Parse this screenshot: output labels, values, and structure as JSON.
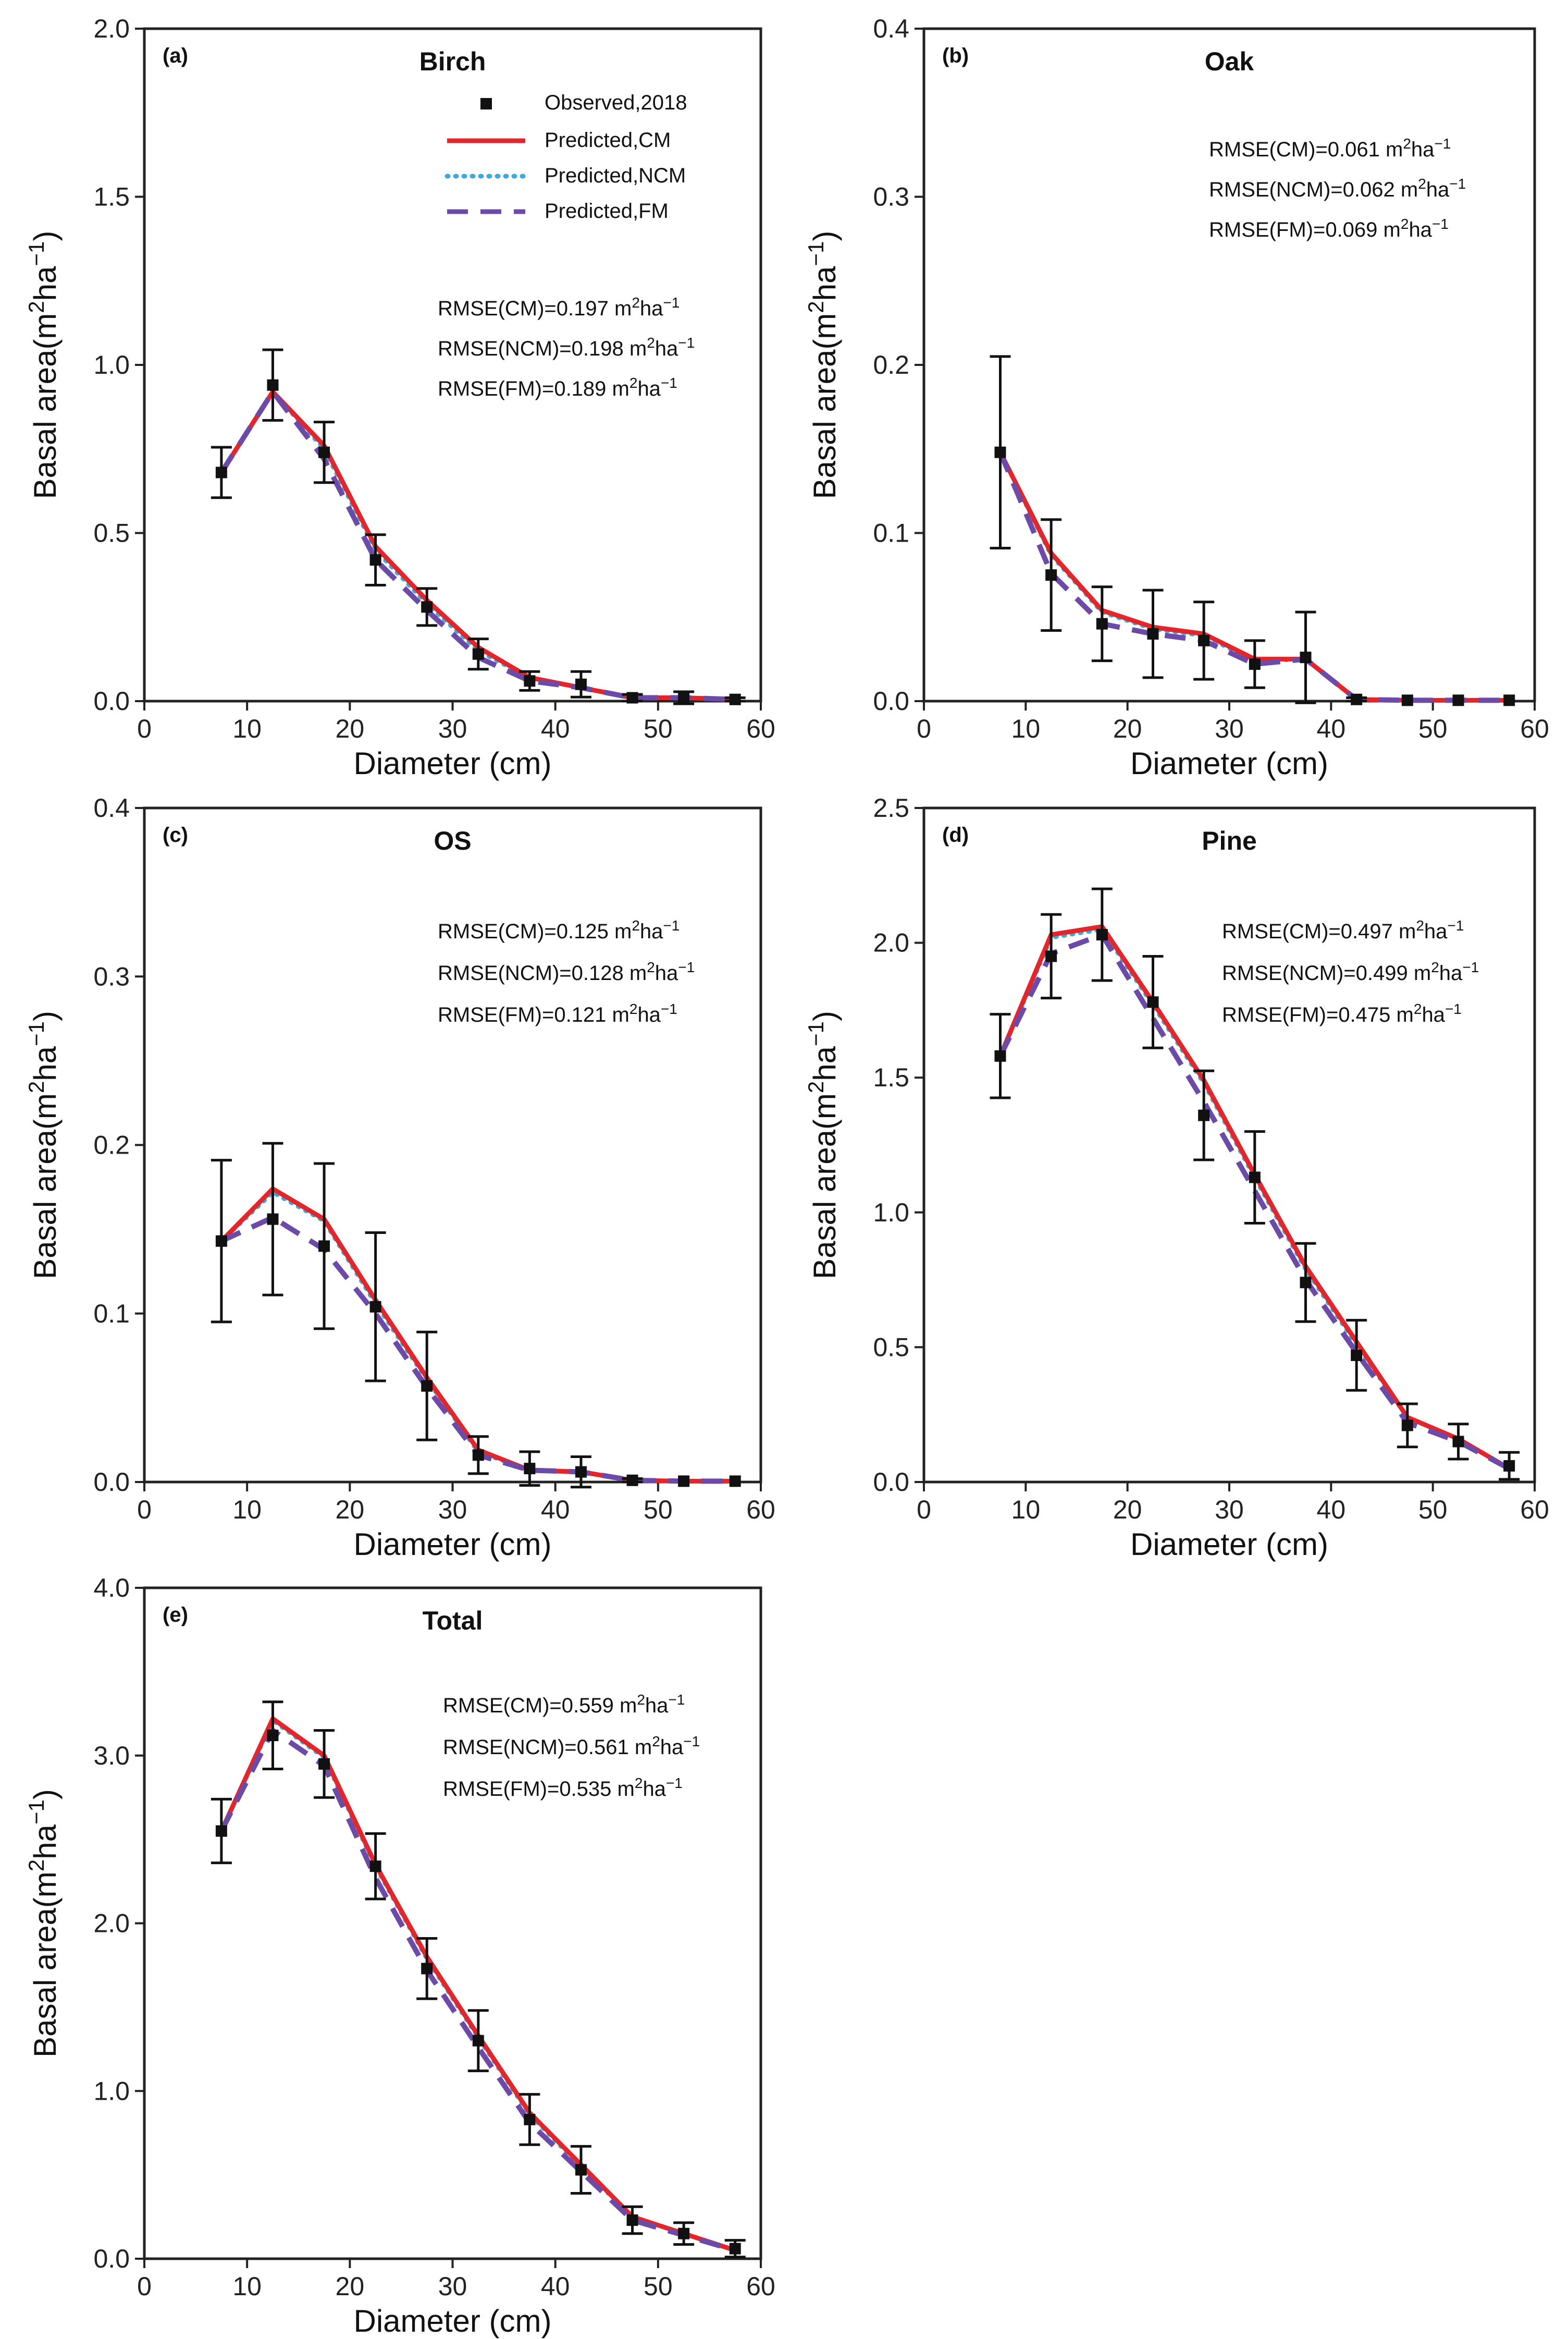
{
  "legend": {
    "observed": "Observed,2018",
    "cm": "Predicted,CM",
    "ncm": "Predicted,NCM",
    "fm": "Predicted,FM"
  },
  "colors": {
    "observed": "#111111",
    "cm": "#e3262b",
    "ncm": "#3fa9dc",
    "fm": "#6b4aa8"
  },
  "chart_data": [
    {
      "type": "line",
      "tag": "(a)",
      "title": "Birch",
      "xlabel": "Diameter (cm)",
      "ylabel": "Basal area(m²ha⁻¹)",
      "xlim": [
        0,
        60
      ],
      "ylim": [
        0,
        2.0
      ],
      "xticks": [
        0,
        10,
        20,
        30,
        40,
        50,
        60
      ],
      "yticks": [
        "0.0",
        "0.5",
        "1.0",
        "1.5",
        "2.0"
      ],
      "x": [
        7.5,
        12.5,
        17.5,
        22.5,
        27.5,
        32.5,
        37.5,
        42.5,
        47.5,
        52.5,
        57.5
      ],
      "observed": [
        0.68,
        0.94,
        0.74,
        0.42,
        0.28,
        0.14,
        0.06,
        0.05,
        0.01,
        0.01,
        0.005
      ],
      "error": [
        0.075,
        0.105,
        0.09,
        0.075,
        0.055,
        0.045,
        0.028,
        0.038,
        0.01,
        0.018,
        0.005
      ],
      "series": [
        {
          "name": "Predicted,CM",
          "values": [
            0.68,
            0.92,
            0.76,
            0.46,
            0.3,
            0.16,
            0.07,
            0.04,
            0.01,
            0.01,
            0.005
          ]
        },
        {
          "name": "Predicted,NCM",
          "values": [
            0.68,
            0.92,
            0.75,
            0.45,
            0.29,
            0.15,
            0.07,
            0.04,
            0.01,
            0.01,
            0.005
          ]
        },
        {
          "name": "Predicted,FM",
          "values": [
            0.68,
            0.92,
            0.72,
            0.42,
            0.27,
            0.13,
            0.06,
            0.04,
            0.01,
            0.01,
            0.005
          ]
        }
      ],
      "rmse": [
        "RMSE(CM)=0.197 m²ha⁻¹",
        "RMSE(NCM)=0.198 m²ha⁻¹",
        "RMSE(FM)=0.189 m²ha⁻¹"
      ]
    },
    {
      "type": "line",
      "tag": "(b)",
      "title": "Oak",
      "xlabel": "Diameter (cm)",
      "ylabel": "Basal area(m²ha⁻¹)",
      "xlim": [
        0,
        60
      ],
      "ylim": [
        0,
        0.4
      ],
      "xticks": [
        0,
        10,
        20,
        30,
        40,
        50,
        60
      ],
      "yticks": [
        "0.0",
        "0.1",
        "0.2",
        "0.3",
        "0.4"
      ],
      "x": [
        7.5,
        12.5,
        17.5,
        22.5,
        27.5,
        32.5,
        37.5,
        42.5,
        47.5,
        52.5,
        57.5
      ],
      "observed": [
        0.148,
        0.075,
        0.046,
        0.04,
        0.036,
        0.022,
        0.026,
        0.001,
        0.0005,
        0.0005,
        0.0005
      ],
      "error": [
        0.057,
        0.033,
        0.022,
        0.026,
        0.023,
        0.014,
        0.027,
        0.001,
        0.0005,
        0.0005,
        0.0005
      ],
      "series": [
        {
          "name": "Predicted,CM",
          "values": [
            0.148,
            0.088,
            0.054,
            0.044,
            0.04,
            0.025,
            0.025,
            0.001,
            0.0005,
            0.0005,
            0.0005
          ]
        },
        {
          "name": "Predicted,NCM",
          "values": [
            0.148,
            0.087,
            0.053,
            0.043,
            0.039,
            0.024,
            0.025,
            0.001,
            0.0005,
            0.0005,
            0.0005
          ]
        },
        {
          "name": "Predicted,FM",
          "values": [
            0.148,
            0.076,
            0.046,
            0.04,
            0.036,
            0.022,
            0.025,
            0.001,
            0.0005,
            0.0005,
            0.0005
          ]
        }
      ],
      "rmse": [
        "RMSE(CM)=0.061 m²ha⁻¹",
        "RMSE(NCM)=0.062 m²ha⁻¹",
        "RMSE(FM)=0.069 m²ha⁻¹"
      ]
    },
    {
      "type": "line",
      "tag": "(c)",
      "title": "OS",
      "xlabel": "Diameter (cm)",
      "ylabel": "Basal area(m²ha⁻¹)",
      "xlim": [
        0,
        60
      ],
      "ylim": [
        0,
        0.4
      ],
      "xticks": [
        0,
        10,
        20,
        30,
        40,
        50,
        60
      ],
      "yticks": [
        "0.0",
        "0.1",
        "0.2",
        "0.3",
        "0.4"
      ],
      "x": [
        7.5,
        12.5,
        17.5,
        22.5,
        27.5,
        32.5,
        37.5,
        42.5,
        47.5,
        52.5,
        57.5
      ],
      "observed": [
        0.143,
        0.156,
        0.14,
        0.104,
        0.057,
        0.016,
        0.008,
        0.006,
        0.001,
        0.0005,
        0.0005
      ],
      "error": [
        0.048,
        0.045,
        0.049,
        0.044,
        0.032,
        0.011,
        0.01,
        0.009,
        0.001,
        0.0005,
        0.0005
      ],
      "series": [
        {
          "name": "Predicted,CM",
          "values": [
            0.143,
            0.174,
            0.156,
            0.108,
            0.062,
            0.019,
            0.007,
            0.006,
            0.001,
            0.0005,
            0.0005
          ]
        },
        {
          "name": "Predicted,NCM",
          "values": [
            0.143,
            0.172,
            0.155,
            0.106,
            0.061,
            0.018,
            0.007,
            0.006,
            0.001,
            0.0005,
            0.0005
          ]
        },
        {
          "name": "Predicted,FM",
          "values": [
            0.143,
            0.157,
            0.138,
            0.1,
            0.056,
            0.016,
            0.007,
            0.006,
            0.001,
            0.0005,
            0.0005
          ]
        }
      ],
      "rmse": [
        "RMSE(CM)=0.125 m²ha⁻¹",
        "RMSE(NCM)=0.128 m²ha⁻¹",
        "RMSE(FM)=0.121 m²ha⁻¹"
      ]
    },
    {
      "type": "line",
      "tag": "(d)",
      "title": "Pine",
      "xlabel": "Diameter (cm)",
      "ylabel": "Basal area(m²ha⁻¹)",
      "xlim": [
        0,
        60
      ],
      "ylim": [
        0,
        2.5
      ],
      "xticks": [
        0,
        10,
        20,
        30,
        40,
        50,
        60
      ],
      "yticks": [
        "0.0",
        "0.5",
        "1.0",
        "1.5",
        "2.0",
        "2.5"
      ],
      "x": [
        7.5,
        12.5,
        17.5,
        22.5,
        27.5,
        32.5,
        37.5,
        42.5,
        47.5,
        52.5,
        57.5
      ],
      "observed": [
        1.58,
        1.95,
        2.03,
        1.78,
        1.36,
        1.13,
        0.74,
        0.47,
        0.21,
        0.15,
        0.06
      ],
      "error": [
        0.155,
        0.155,
        0.17,
        0.17,
        0.165,
        0.17,
        0.145,
        0.13,
        0.08,
        0.065,
        0.05
      ],
      "series": [
        {
          "name": "Predicted,CM",
          "values": [
            1.58,
            2.03,
            2.06,
            1.78,
            1.49,
            1.14,
            0.8,
            0.52,
            0.24,
            0.16,
            0.05
          ]
        },
        {
          "name": "Predicted,NCM",
          "values": [
            1.58,
            2.02,
            2.05,
            1.77,
            1.48,
            1.13,
            0.79,
            0.51,
            0.24,
            0.16,
            0.05
          ]
        },
        {
          "name": "Predicted,FM",
          "values": [
            1.58,
            1.96,
            2.03,
            1.72,
            1.41,
            1.08,
            0.75,
            0.48,
            0.22,
            0.15,
            0.05
          ]
        }
      ],
      "rmse": [
        "RMSE(CM)=0.497 m²ha⁻¹",
        "RMSE(NCM)=0.499 m²ha⁻¹",
        "RMSE(FM)=0.475 m²ha⁻¹"
      ]
    },
    {
      "type": "line",
      "tag": "(e)",
      "title": "Total",
      "xlabel": "Diameter (cm)",
      "ylabel": "Basal area(m²ha⁻¹)",
      "xlim": [
        0,
        60
      ],
      "ylim": [
        0,
        4.0
      ],
      "xticks": [
        0,
        10,
        20,
        30,
        40,
        50,
        60
      ],
      "yticks": [
        "0.0",
        "1.0",
        "2.0",
        "3.0",
        "4.0"
      ],
      "x": [
        7.5,
        12.5,
        17.5,
        22.5,
        27.5,
        32.5,
        37.5,
        42.5,
        47.5,
        52.5,
        57.5
      ],
      "observed": [
        2.55,
        3.12,
        2.95,
        2.34,
        1.73,
        1.3,
        0.83,
        0.53,
        0.23,
        0.15,
        0.06
      ],
      "error": [
        0.19,
        0.2,
        0.2,
        0.195,
        0.18,
        0.18,
        0.15,
        0.14,
        0.08,
        0.065,
        0.05
      ],
      "series": [
        {
          "name": "Predicted,CM",
          "values": [
            2.55,
            3.22,
            3.0,
            2.35,
            1.8,
            1.33,
            0.87,
            0.56,
            0.25,
            0.15,
            0.05
          ]
        },
        {
          "name": "Predicted,NCM",
          "values": [
            2.55,
            3.21,
            2.99,
            2.34,
            1.79,
            1.32,
            0.86,
            0.55,
            0.25,
            0.15,
            0.05
          ]
        },
        {
          "name": "Predicted,FM",
          "values": [
            2.55,
            3.15,
            2.94,
            2.27,
            1.72,
            1.26,
            0.81,
            0.52,
            0.23,
            0.14,
            0.05
          ]
        }
      ],
      "rmse": [
        "RMSE(CM)=0.559 m²ha⁻¹",
        "RMSE(NCM)=0.561 m²ha⁻¹",
        "RMSE(FM)=0.535 m²ha⁻¹"
      ]
    }
  ]
}
